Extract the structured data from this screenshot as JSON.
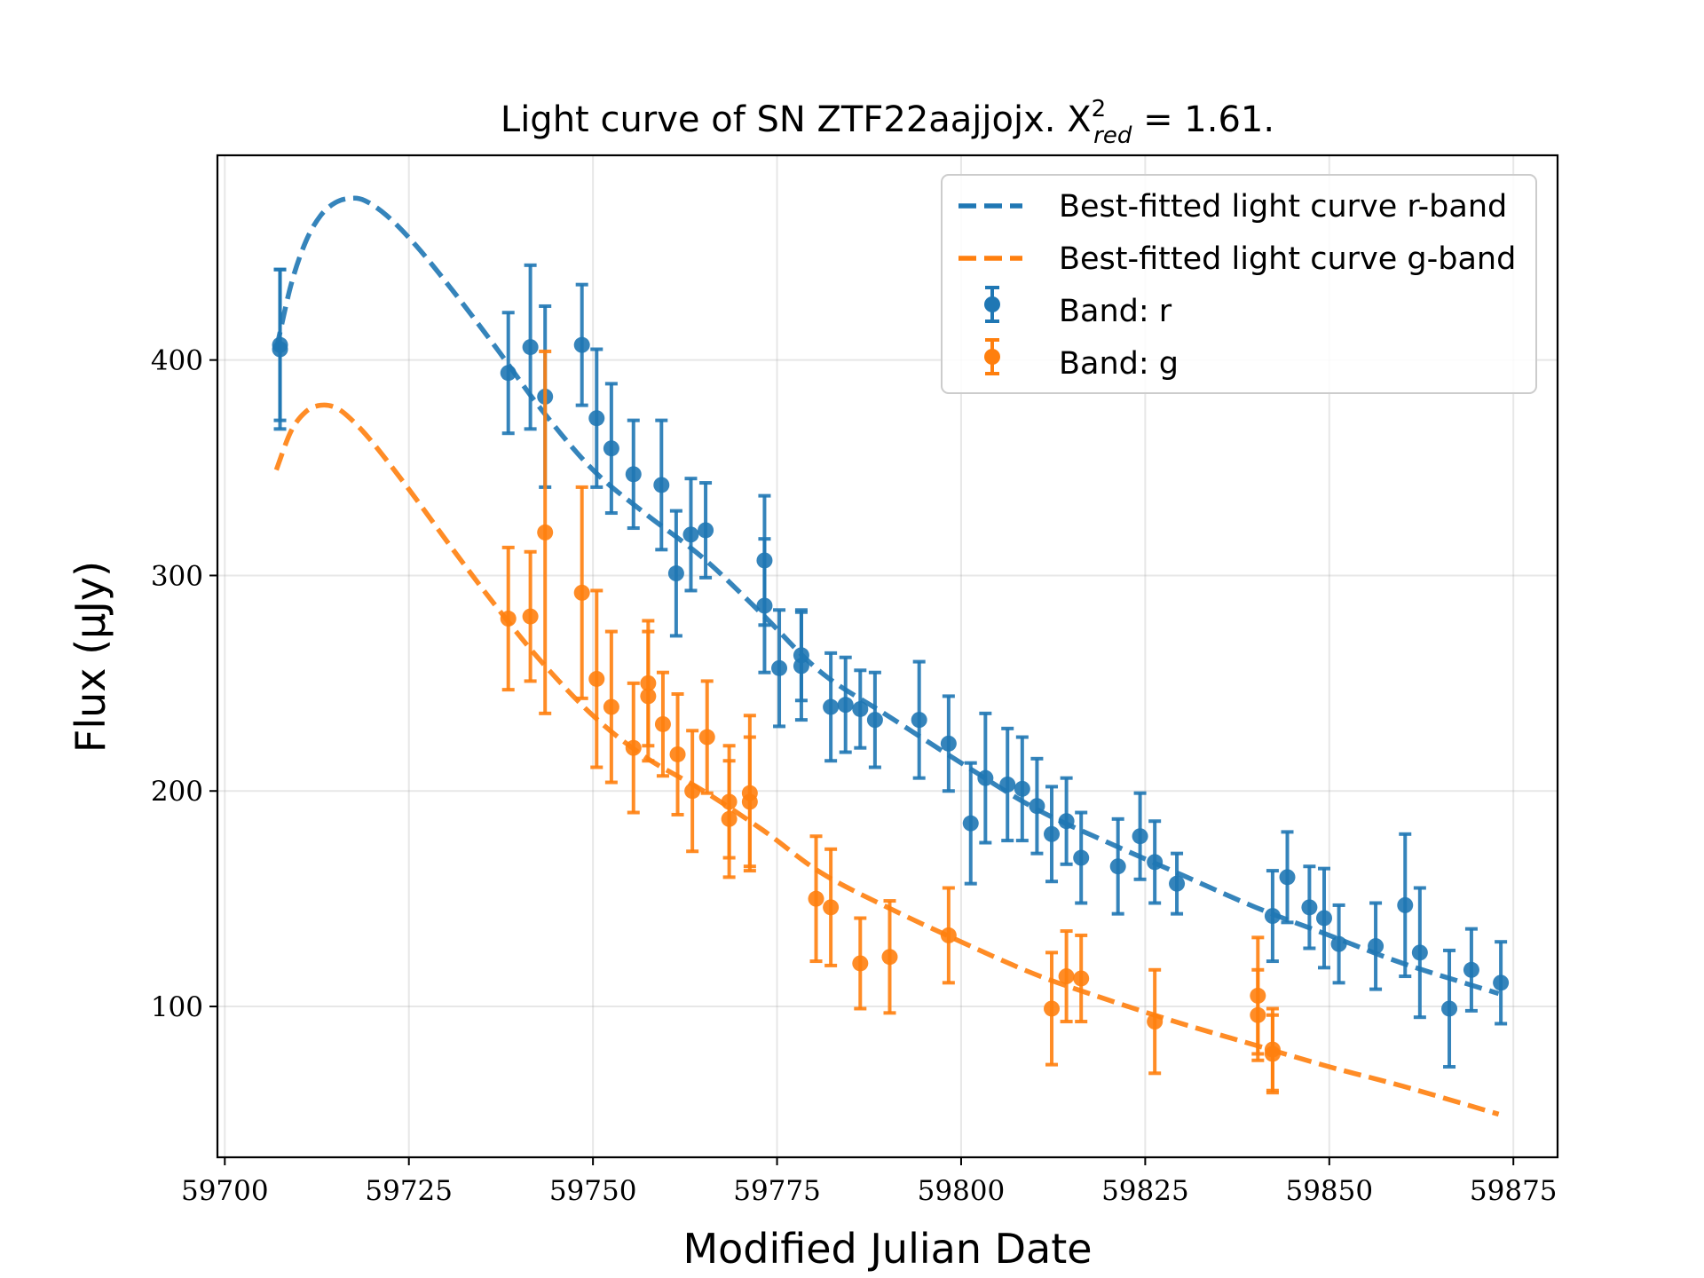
{
  "chart_data": {
    "type": "scatter",
    "title": "Light curve of SN ZTF22aajjojx. X",
    "title_sup": "2",
    "title_sub": "red",
    "title_tail": " = 1.61.",
    "xlabel": "Modified Julian Date",
    "ylabel": "Flux (μJy)",
    "xlim": [
      59699,
      59881
    ],
    "ylim": [
      30,
      495
    ],
    "xticks": [
      59700,
      59725,
      59750,
      59775,
      59800,
      59825,
      59850,
      59875
    ],
    "yticks": [
      100,
      200,
      300,
      400
    ],
    "grid": true,
    "legend_position": "top-right",
    "colors": {
      "r": "#1f77b4",
      "g": "#ff7f0e"
    },
    "series": [
      {
        "name": "Best-fitted light curve r-band",
        "kind": "model",
        "style": "dashed",
        "color": "#1f77b4",
        "x": [
          59707,
          59709,
          59711,
          59713,
          59715,
          59717,
          59719,
          59722,
          59726,
          59731,
          59737,
          59743,
          59750,
          59757,
          59765,
          59773,
          59781,
          59790,
          59800,
          59810,
          59820,
          59830,
          59840,
          59850,
          59860,
          59873
        ],
        "y": [
          405,
          435,
          455,
          467,
          473,
          475,
          474,
          467,
          453,
          432,
          405,
          377,
          349,
          329,
          308,
          282,
          255,
          235,
          213,
          192,
          176,
          161,
          146,
          133,
          120,
          106
        ]
      },
      {
        "name": "Best-fitted light curve g-band",
        "kind": "model",
        "style": "dashed",
        "color": "#ff7f0e",
        "x": [
          59707,
          59709,
          59711,
          59713,
          59715,
          59717,
          59720,
          59725,
          59731,
          59737,
          59743,
          59750,
          59757,
          59765,
          59773,
          59781,
          59790,
          59800,
          59810,
          59820,
          59830,
          59840,
          59850,
          59860,
          59873
        ],
        "y": [
          349,
          367,
          376,
          379,
          378,
          373,
          362,
          340,
          312,
          285,
          260,
          235,
          216,
          200,
          182,
          162,
          146,
          130,
          115,
          103,
          92,
          82,
          72,
          63,
          50
        ]
      },
      {
        "name": "Band: r",
        "kind": "points",
        "color": "#1f77b4",
        "x": [
          59707.5,
          59707.5,
          59738.5,
          59741.5,
          59743.5,
          59748.5,
          59750.5,
          59752.5,
          59755.5,
          59759.3,
          59761.3,
          59763.3,
          59765.3,
          59773.3,
          59773.3,
          59775.3,
          59778.3,
          59778.3,
          59782.3,
          59784.3,
          59786.3,
          59788.3,
          59794.3,
          59798.3,
          59801.3,
          59803.3,
          59806.3,
          59808.3,
          59810.3,
          59812.3,
          59814.3,
          59816.3,
          59821.3,
          59824.3,
          59826.3,
          59829.3,
          59842.3,
          59844.3,
          59847.3,
          59849.3,
          59851.3,
          59856.3,
          59860.3,
          59862.3,
          59866.3,
          59869.3,
          59873.3
        ],
        "y": [
          407,
          405,
          394,
          406,
          383,
          407,
          373,
          359,
          347,
          342,
          301,
          319,
          321,
          307,
          286,
          257,
          263,
          258,
          239,
          240,
          238,
          233,
          233,
          222,
          185,
          206,
          203,
          201,
          193,
          180,
          186,
          169,
          165,
          179,
          167,
          157,
          142,
          160,
          146,
          141,
          129,
          128,
          147,
          125,
          99,
          117,
          111
        ],
        "err": [
          35,
          37,
          28,
          38,
          42,
          28,
          32,
          30,
          25,
          30,
          29,
          26,
          22,
          30,
          31,
          27,
          21,
          25,
          25,
          22,
          18,
          22,
          27,
          22,
          28,
          30,
          26,
          24,
          22,
          22,
          20,
          21,
          22,
          20,
          19,
          14,
          21,
          21,
          19,
          23,
          18,
          20,
          33,
          30,
          27,
          19,
          19
        ]
      },
      {
        "name": "Band: g",
        "kind": "points",
        "color": "#ff7f0e",
        "x": [
          59738.5,
          59741.5,
          59743.5,
          59748.5,
          59750.5,
          59752.5,
          59755.5,
          59757.5,
          59757.5,
          59759.5,
          59761.5,
          59763.5,
          59765.5,
          59768.5,
          59768.5,
          59771.3,
          59771.3,
          59780.3,
          59782.3,
          59786.3,
          59790.3,
          59798.3,
          59812.3,
          59814.3,
          59816.3,
          59826.3,
          59840.3,
          59840.3,
          59842.3,
          59842.3
        ],
        "y": [
          280,
          281,
          320,
          292,
          252,
          239,
          220,
          250,
          244,
          231,
          217,
          200,
          225,
          195,
          187,
          199,
          195,
          150,
          146,
          120,
          123,
          133,
          99,
          114,
          113,
          93,
          105,
          96,
          80,
          78
        ],
        "err": [
          33,
          30,
          84,
          49,
          41,
          35,
          30,
          29,
          30,
          24,
          28,
          28,
          26,
          26,
          27,
          36,
          30,
          29,
          27,
          21,
          26,
          22,
          26,
          21,
          20,
          24,
          27,
          21,
          19,
          18
        ]
      }
    ]
  }
}
